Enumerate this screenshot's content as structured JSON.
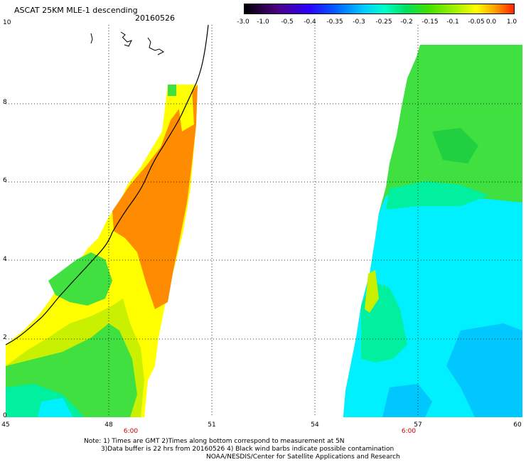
{
  "title": "ASCAT 25KM MLE-1 descending",
  "date": "20160526",
  "colorbar": {
    "ticks": [
      "-3.0",
      "-1.0",
      "-0.5",
      "-0.4",
      "-0.35",
      "-0.3",
      "-0.25",
      "-0.2",
      "-0.15",
      "-0.1",
      "-0.05",
      "0.0",
      "1.0"
    ]
  },
  "axes": {
    "x_ticks": [
      "45",
      "48",
      "51",
      "54",
      "57",
      "60"
    ],
    "y_ticks": [
      "0",
      "2",
      "4",
      "6",
      "8",
      "10"
    ],
    "pass_times": [
      "6:00",
      "6:00"
    ]
  },
  "notes": [
    "Note: 1) Times are GMT 2)Times along bottom correspond to measurement at 5N",
    "3)Data buffer is 22 hrs from 20160526 4) Black wind barbs indicate possible contamination",
    "NOAA/NESDIS/Center for Satellite Applications and Research"
  ],
  "colors": {
    "orange": "#ff8c00",
    "yellow": "#ffff00",
    "yellow_green": "#c8f000",
    "green": "#40e040",
    "cyan_green": "#00f0a0",
    "cyan": "#00f0ff",
    "light_blue": "#00c8ff"
  }
}
